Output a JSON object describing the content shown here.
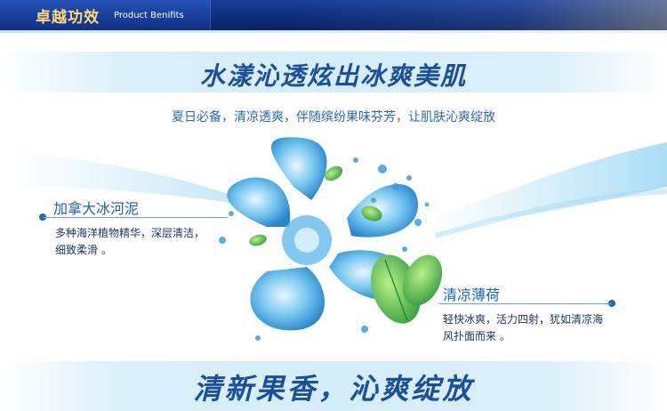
{
  "header": {
    "title_cn": "卓越功效",
    "title_en": "Product Benifits"
  },
  "headline": "水漾沁透炫出冰爽美肌",
  "subtitle": "夏日必备，清凉透爽，伴随缤纷果味芬芳，让肌肤沁爽绽放",
  "features": [
    {
      "title": "加拿大冰河泥",
      "desc": "多种海洋植物精华，深层清洁，细致柔滑 。"
    },
    {
      "title": "清凉薄荷",
      "desc": "轻快冰爽，活力四射，犹如清凉海风扑面而来 。"
    }
  ],
  "slogan": "清新果香，沁爽绽放",
  "colors": {
    "header_bg": "#0e2d7c",
    "header_title": "#ffd97a",
    "headline": "#1b4f9c",
    "accent": "#2068b8"
  }
}
